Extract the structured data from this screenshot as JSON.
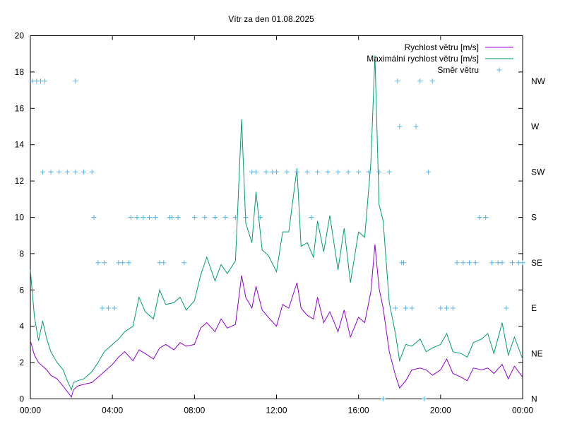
{
  "chart_data": {
    "type": "line",
    "title": "Vítr za den 01.08.2025",
    "x_axis": {
      "range_hours": [
        0,
        24
      ],
      "ticks": [
        {
          "h": 0,
          "label": "00:00"
        },
        {
          "h": 4,
          "label": "04:00"
        },
        {
          "h": 8,
          "label": "08:00"
        },
        {
          "h": 12,
          "label": "12:00"
        },
        {
          "h": 16,
          "label": "16:00"
        },
        {
          "h": 20,
          "label": "20:00"
        },
        {
          "h": 24,
          "label": "00:00"
        }
      ]
    },
    "y_axis": {
      "range": [
        0,
        20
      ],
      "ticks": [
        0,
        2,
        4,
        6,
        8,
        10,
        12,
        14,
        16,
        18,
        20
      ]
    },
    "y2_axis": {
      "ticks": [
        {
          "v": 0,
          "label": "N"
        },
        {
          "v": 2.5,
          "label": "NE"
        },
        {
          "v": 5,
          "label": "E"
        },
        {
          "v": 7.5,
          "label": "SE"
        },
        {
          "v": 10,
          "label": "S"
        },
        {
          "v": 12.5,
          "label": "SW"
        },
        {
          "v": 15,
          "label": "W"
        },
        {
          "v": 17.5,
          "label": "NW"
        }
      ]
    },
    "grid": false,
    "legend_position": "top-right",
    "series": [
      {
        "name": "Rychlost větru [m/s]",
        "color": "#9400d3",
        "style": "line",
        "x": [
          0.0,
          0.2,
          0.4,
          0.6,
          0.8,
          1.0,
          1.3,
          1.6,
          1.8,
          2.0,
          2.1,
          2.3,
          2.6,
          3.0,
          3.3,
          3.6,
          4.0,
          4.3,
          4.6,
          5.0,
          5.3,
          5.6,
          6.0,
          6.3,
          6.6,
          7.0,
          7.3,
          7.6,
          8.0,
          8.3,
          8.6,
          9.0,
          9.3,
          9.6,
          10.0,
          10.3,
          10.5,
          10.8,
          11.0,
          11.3,
          11.6,
          12.0,
          12.3,
          12.6,
          13.0,
          13.2,
          13.5,
          13.8,
          14.0,
          14.3,
          14.6,
          15.0,
          15.3,
          15.6,
          16.0,
          16.3,
          16.6,
          16.8,
          17.0,
          17.2,
          17.5,
          17.8,
          18.0,
          18.3,
          18.6,
          19.0,
          19.3,
          19.6,
          20.0,
          20.3,
          20.6,
          21.0,
          21.3,
          21.6,
          22.0,
          22.3,
          22.6,
          23.0,
          23.3,
          23.6,
          24.0
        ],
        "values": [
          3.2,
          2.4,
          2.0,
          1.8,
          1.6,
          1.3,
          1.1,
          0.7,
          0.4,
          0.1,
          0.5,
          0.7,
          0.8,
          0.9,
          1.2,
          1.5,
          1.9,
          2.3,
          2.6,
          2.1,
          2.7,
          2.5,
          2.2,
          2.8,
          3.0,
          2.7,
          3.1,
          2.9,
          3.0,
          3.9,
          4.2,
          3.7,
          4.4,
          3.9,
          4.1,
          6.8,
          5.6,
          5.0,
          6.2,
          4.9,
          4.5,
          4.0,
          5.2,
          5.0,
          6.4,
          5.0,
          4.6,
          4.4,
          5.6,
          4.2,
          4.8,
          3.7,
          4.9,
          3.4,
          4.5,
          4.2,
          5.9,
          8.5,
          6.1,
          5.0,
          2.6,
          1.3,
          0.6,
          1.0,
          1.6,
          1.7,
          1.6,
          1.3,
          1.6,
          2.2,
          1.4,
          1.2,
          1.0,
          1.7,
          1.6,
          1.7,
          1.4,
          1.9,
          1.1,
          1.8,
          1.2
        ]
      },
      {
        "name": "Maximální rychlost větru [m/s]",
        "color": "#009e73",
        "style": "line",
        "x": [
          0.0,
          0.2,
          0.4,
          0.6,
          0.8,
          1.0,
          1.3,
          1.6,
          1.8,
          2.0,
          2.1,
          2.3,
          2.6,
          3.0,
          3.3,
          3.6,
          4.0,
          4.3,
          4.6,
          5.0,
          5.3,
          5.6,
          6.0,
          6.3,
          6.6,
          7.0,
          7.3,
          7.6,
          8.0,
          8.3,
          8.6,
          9.0,
          9.3,
          9.6,
          10.0,
          10.3,
          10.5,
          10.8,
          11.0,
          11.3,
          11.6,
          12.0,
          12.3,
          12.6,
          13.0,
          13.2,
          13.5,
          13.8,
          14.0,
          14.3,
          14.6,
          15.0,
          15.3,
          15.6,
          16.0,
          16.3,
          16.6,
          16.8,
          17.0,
          17.2,
          17.5,
          17.8,
          18.0,
          18.3,
          18.6,
          19.0,
          19.3,
          19.6,
          20.0,
          20.3,
          20.6,
          21.0,
          21.3,
          21.6,
          22.0,
          22.3,
          22.6,
          23.0,
          23.3,
          23.6,
          24.0
        ],
        "values": [
          7.1,
          4.5,
          3.2,
          4.3,
          3.3,
          2.6,
          2.0,
          1.6,
          1.0,
          0.5,
          0.9,
          1.0,
          1.1,
          1.5,
          2.0,
          2.6,
          3.0,
          3.3,
          3.7,
          4.0,
          5.6,
          4.8,
          4.4,
          6.0,
          5.2,
          5.3,
          5.6,
          4.9,
          5.4,
          6.8,
          7.8,
          6.5,
          7.4,
          6.9,
          7.6,
          15.4,
          9.7,
          8.6,
          11.4,
          8.2,
          7.9,
          7.0,
          9.2,
          9.2,
          12.7,
          8.4,
          8.6,
          7.8,
          9.8,
          8.1,
          10.1,
          7.1,
          9.4,
          6.4,
          9.2,
          8.9,
          13.0,
          18.9,
          10.7,
          9.8,
          5.3,
          3.6,
          2.1,
          3.0,
          2.9,
          3.3,
          2.6,
          2.8,
          3.0,
          3.6,
          2.6,
          2.5,
          2.3,
          3.1,
          3.3,
          3.6,
          2.5,
          4.2,
          2.4,
          3.4,
          2.2
        ]
      },
      {
        "name": "Směr větru",
        "color": "#56b4e9",
        "style": "points",
        "x": [
          0.1,
          0.3,
          0.5,
          0.7,
          2.2,
          0.6,
          1.0,
          1.4,
          1.8,
          2.2,
          2.6,
          3.0,
          3.1,
          3.3,
          3.6,
          3.5,
          3.8,
          4.1,
          4.3,
          4.5,
          4.8,
          4.9,
          5.2,
          5.5,
          5.8,
          6.1,
          6.3,
          6.5,
          6.8,
          6.9,
          7.2,
          7.5,
          8.0,
          8.5,
          9.0,
          9.5,
          10.0,
          10.5,
          10.8,
          11.0,
          11.2,
          11.5,
          11.8,
          12.0,
          12.5,
          13.0,
          13.5,
          14.0,
          14.5,
          15.0,
          15.5,
          16.0,
          16.5,
          17.0,
          13.7,
          17.2,
          17.5,
          17.8,
          17.9,
          18.0,
          18.1,
          18.2,
          18.3,
          18.6,
          18.8,
          19.0,
          19.2,
          19.4,
          19.6,
          20.0,
          20.3,
          20.6,
          20.8,
          21.1,
          21.4,
          21.7,
          21.9,
          22.2,
          22.5,
          22.8,
          23.0,
          23.2,
          23.5,
          23.8,
          24.0
        ],
        "values": [
          17.5,
          17.5,
          17.5,
          17.5,
          17.5,
          12.5,
          12.5,
          12.5,
          12.5,
          12.5,
          12.5,
          12.5,
          10,
          7.5,
          7.5,
          5,
          5,
          5,
          7.5,
          7.5,
          7.5,
          10,
          10,
          10,
          10,
          10,
          7.5,
          7.5,
          10,
          10,
          10,
          7.5,
          10,
          10,
          10,
          10,
          10,
          10,
          12.5,
          12.5,
          10,
          12.5,
          12.5,
          12.5,
          12.5,
          12.5,
          12.5,
          12.5,
          12.5,
          12.5,
          12.5,
          12.5,
          12.5,
          12.5,
          10,
          0,
          12.5,
          5,
          17.5,
          15,
          7.5,
          7.5,
          5,
          5,
          15,
          17.5,
          0,
          12.5,
          17.5,
          5,
          5,
          5,
          7.5,
          7.5,
          7.5,
          7.5,
          10,
          10,
          7.5,
          7.5,
          7.5,
          5,
          7.5,
          7.5,
          7.5
        ]
      }
    ]
  }
}
